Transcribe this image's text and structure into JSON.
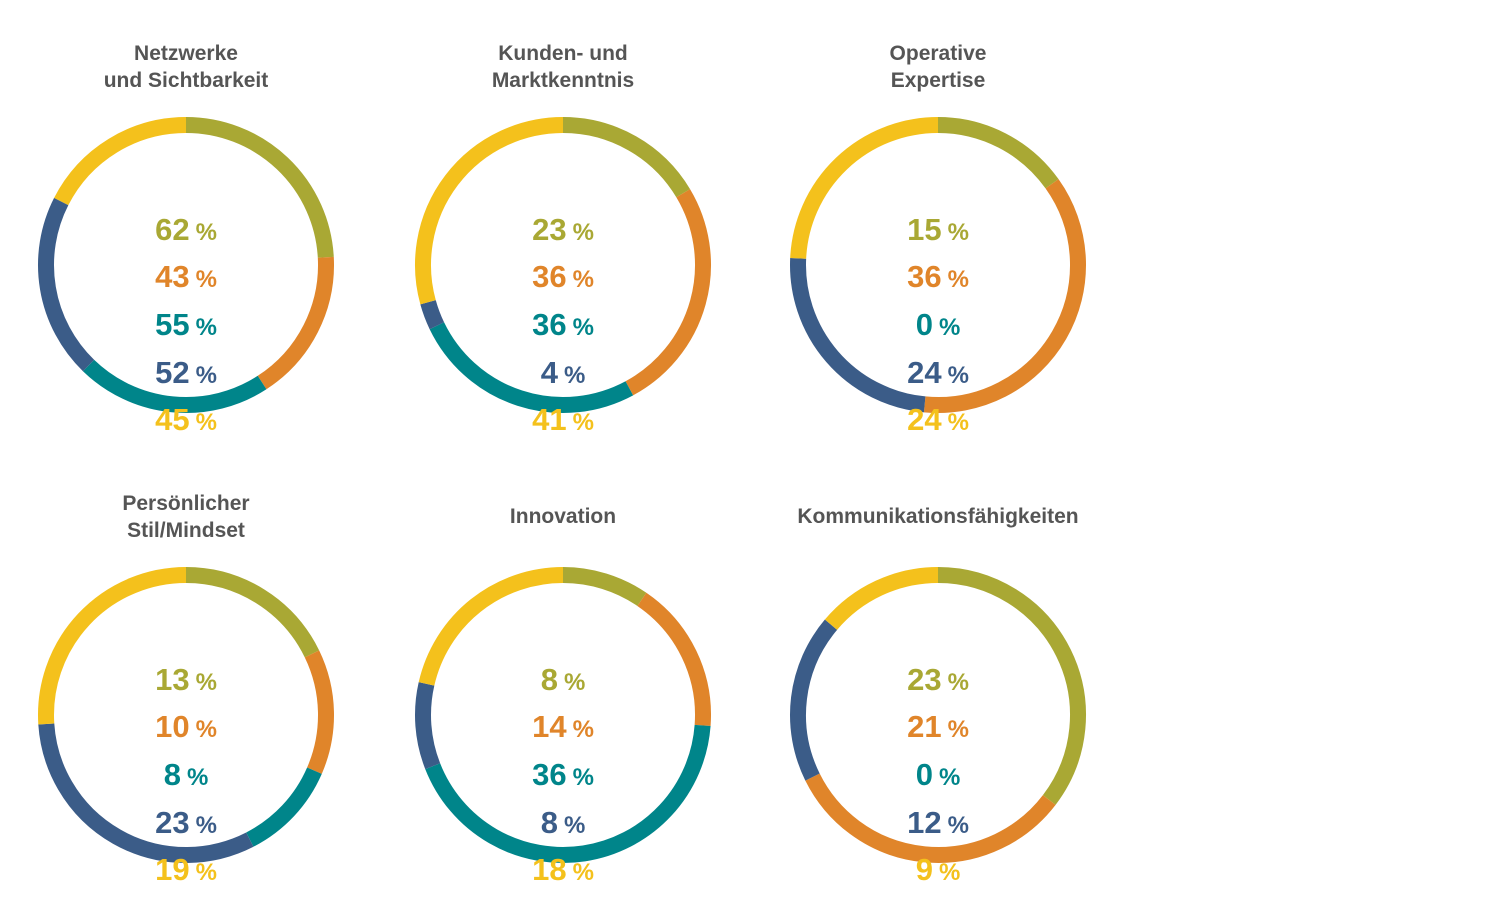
{
  "colors": {
    "olive": "#A9A834",
    "orange": "#E0852A",
    "teal": "#00858A",
    "navy": "#3B5C88",
    "yellow": "#F4C11C",
    "title": "#555555"
  },
  "chart_data": [
    {
      "type": "pie",
      "title": "Netzwerke\nund Sichtbarkeit",
      "categories": [
        "",
        "",
        "",
        "",
        ""
      ],
      "values": [
        62,
        43,
        55,
        52,
        45
      ],
      "unit": "%"
    },
    {
      "type": "pie",
      "title": "Kunden- und\nMarktkenntnis",
      "categories": [
        "",
        "",
        "",
        "",
        ""
      ],
      "values": [
        23,
        36,
        36,
        4,
        41
      ],
      "unit": "%"
    },
    {
      "type": "pie",
      "title": "Operative\nExpertise",
      "categories": [
        "",
        "",
        "",
        "",
        ""
      ],
      "values": [
        15,
        36,
        0,
        24,
        24
      ],
      "unit": "%"
    },
    {
      "type": "pie",
      "title": "Persönlicher\nStil/Mindset",
      "categories": [
        "",
        "",
        "",
        "",
        ""
      ],
      "values": [
        13,
        10,
        8,
        23,
        19
      ],
      "unit": "%"
    },
    {
      "type": "pie",
      "title": "Innovation",
      "categories": [
        "",
        "",
        "",
        "",
        ""
      ],
      "values": [
        8,
        14,
        36,
        8,
        18
      ],
      "unit": "%"
    },
    {
      "type": "pie",
      "title": "Kommunikationsfähigkeiten",
      "categories": [
        "",
        "",
        "",
        "",
        ""
      ],
      "values": [
        23,
        21,
        0,
        12,
        9
      ],
      "unit": "%"
    }
  ]
}
